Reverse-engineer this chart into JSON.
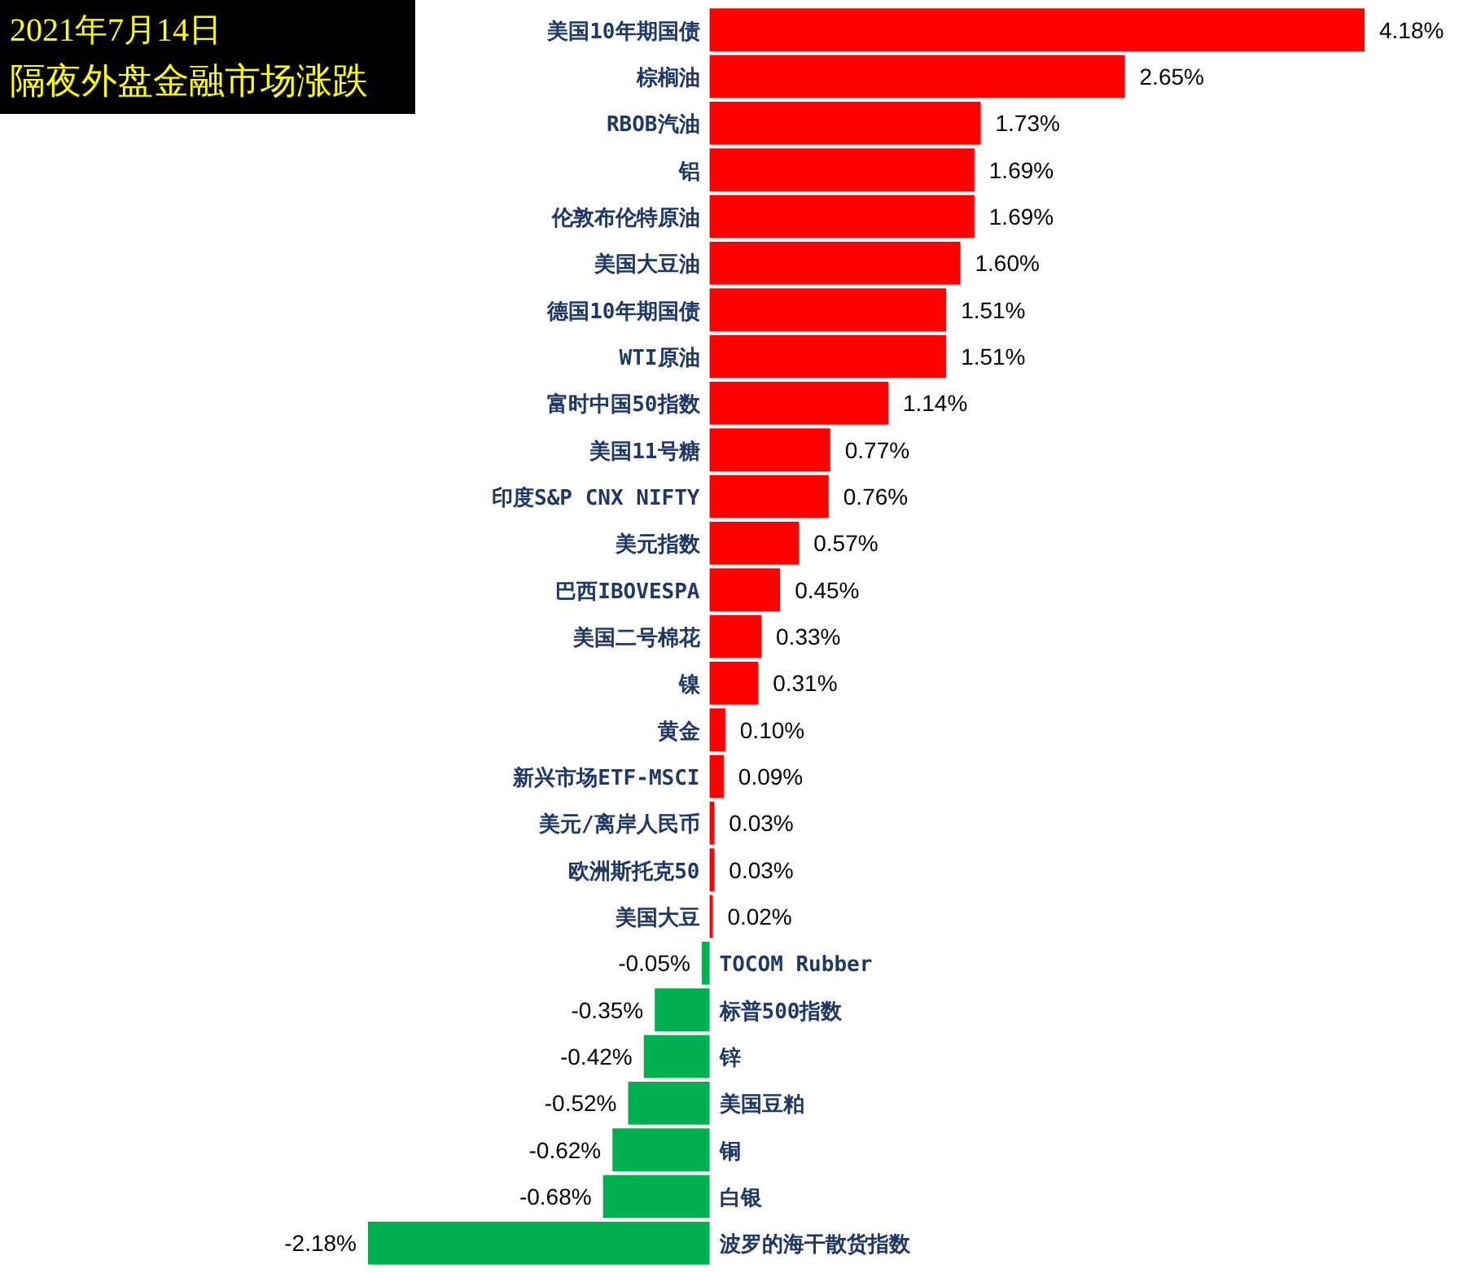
{
  "chart_data": {
    "type": "bar",
    "orientation": "horizontal",
    "title": "2021年7月14日",
    "subtitle": "隔夜外盘金融市场涨跌",
    "categories": [
      "美国10年期国债",
      "棕榈油",
      "RBOB汽油",
      "铝",
      "伦敦布伦特原油",
      "美国大豆油",
      "德国10年期国债",
      "WTI原油",
      "富时中国50指数",
      "美国11号糖",
      "印度S&P CNX NIFTY",
      "美元指数",
      "巴西IBOVESPA",
      "美国二号棉花",
      "镍",
      "黄金",
      "新兴市场ETF-MSCI",
      "美元/离岸人民币",
      "欧洲斯托克50",
      "美国大豆",
      "TOCOM Rubber",
      "标普500指数",
      "锌",
      "美国豆粕",
      "铜",
      "白银",
      "波罗的海干散货指数"
    ],
    "values": [
      4.18,
      2.65,
      1.73,
      1.69,
      1.69,
      1.6,
      1.51,
      1.51,
      1.14,
      0.77,
      0.76,
      0.57,
      0.45,
      0.33,
      0.31,
      0.1,
      0.09,
      0.03,
      0.03,
      0.02,
      -0.05,
      -0.35,
      -0.42,
      -0.52,
      -0.62,
      -0.68,
      -2.18
    ],
    "value_labels": [
      "4.18%",
      "2.65%",
      "1.73%",
      "1.69%",
      "1.69%",
      "1.60%",
      "1.51%",
      "1.51%",
      "1.14%",
      "0.77%",
      "0.76%",
      "0.57%",
      "0.45%",
      "0.33%",
      "0.31%",
      "0.10%",
      "0.09%",
      "0.03%",
      "0.03%",
      "0.02%",
      "-0.05%",
      "-0.35%",
      "-0.42%",
      "-0.52%",
      "-0.62%",
      "-0.68%",
      "-2.18%"
    ],
    "colors": [
      "#ff0000",
      "#ff0000",
      "#ff0000",
      "#ff0000",
      "#ff0000",
      "#ff0000",
      "#ff0000",
      "#ff0000",
      "#ff0000",
      "#ff0000",
      "#ff0000",
      "#ff0000",
      "#ff0000",
      "#ff0000",
      "#ff0000",
      "#ff0000",
      "#ff0000",
      "#ff0000",
      "#ff0000",
      "#ff0000",
      "#00b050",
      "#00b050",
      "#00b050",
      "#00b050",
      "#00b050",
      "#00b050",
      "#00b050"
    ]
  }
}
